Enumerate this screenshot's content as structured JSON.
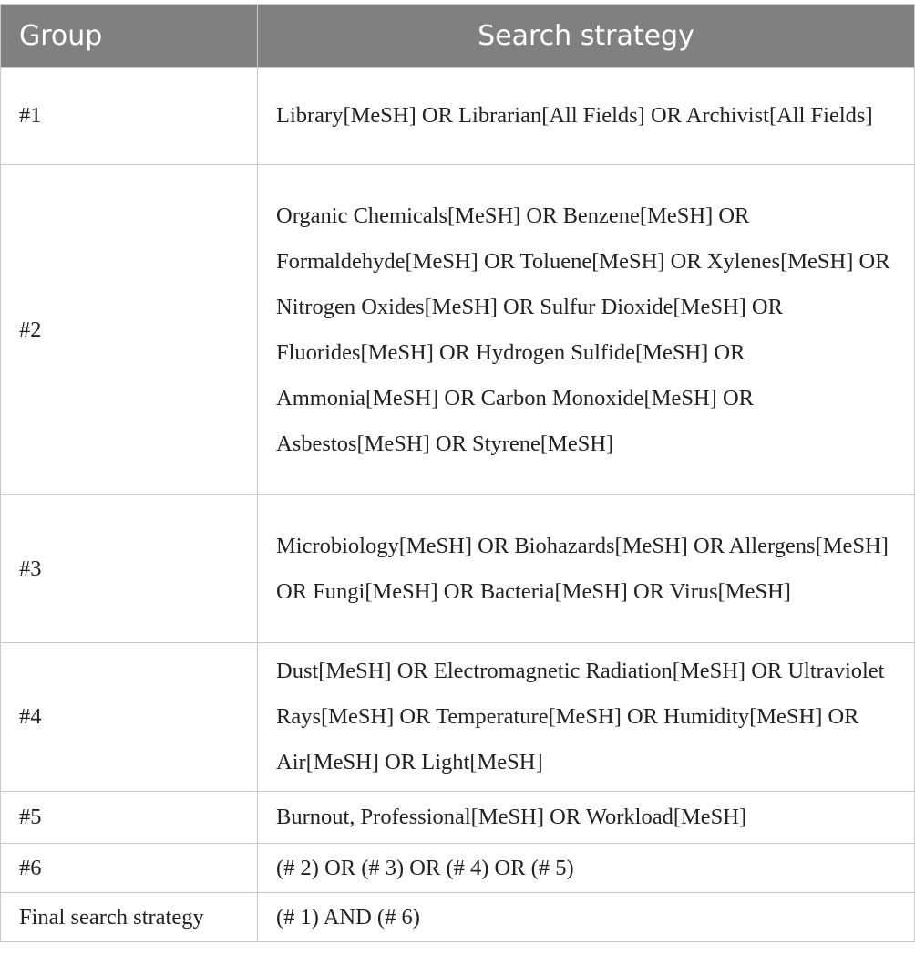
{
  "header": {
    "group": "Group",
    "strategy": "Search strategy"
  },
  "rows": [
    {
      "group": "#1",
      "strategy": "Library[MeSH] OR Librarian[All Fields] OR Archivist[All Fields]"
    },
    {
      "group": "#2",
      "strategy": "Organic Chemicals[MeSH] OR Benzene[MeSH] OR Formaldehyde[MeSH] OR Toluene[MeSH] OR Xylenes[MeSH] OR Nitrogen Oxides[MeSH] OR Sulfur Dioxide[MeSH] OR Fluorides[MeSH] OR Hydrogen Sulfide[MeSH] OR Ammonia[MeSH] OR Carbon Monoxide[MeSH] OR Asbestos[MeSH] OR Styrene[MeSH]"
    },
    {
      "group": "#3",
      "strategy": "Microbiology[MeSH] OR Biohazards[MeSH] OR Allergens[MeSH] OR Fungi[MeSH] OR Bacteria[MeSH] OR Virus[MeSH]"
    },
    {
      "group": "#4",
      "strategy": "Dust[MeSH] OR Electromagnetic Radiation[MeSH] OR Ultraviolet Rays[MeSH] OR Temperature[MeSH] OR Humidity[MeSH] OR Air[MeSH] OR Light[MeSH]"
    },
    {
      "group": "#5",
      "strategy": "Burnout, Professional[MeSH] OR Workload[MeSH]"
    },
    {
      "group": "#6",
      "strategy": "(# 2) OR (# 3) OR (# 4) OR (# 5)"
    },
    {
      "group": "Final search strategy",
      "strategy": "(# 1) AND (# 6)"
    }
  ],
  "colors": {
    "header_bg": "#7f8080",
    "header_text": "#ffffff",
    "border": "#c8c8c8"
  }
}
